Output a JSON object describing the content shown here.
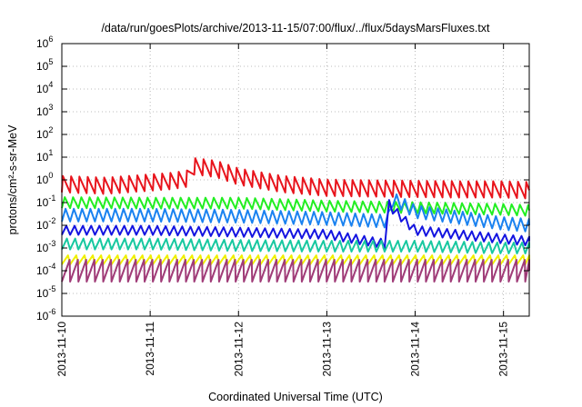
{
  "chart_data": {
    "type": "line",
    "title": "/data/run/goesPlots/archive/2013-11-15/07:00/flux/../flux/5daysMarsFluxes.txt",
    "xlabel": "Coordinated Universal Time (UTC)",
    "ylabel": "protons/cm²-s-sr-MeV",
    "y_scale": "log",
    "ylim": [
      1e-06,
      1000000.0
    ],
    "xlim": [
      "2013-11-10T00:00",
      "2013-11-15T07:00"
    ],
    "x_ticks": [
      "2013-11-10",
      "2013-11-11",
      "2013-11-12",
      "2013-11-13",
      "2013-11-14",
      "2013-11-15"
    ],
    "y_ticks": [
      {
        "base": "10",
        "exp": "-6"
      },
      {
        "base": "10",
        "exp": "-5"
      },
      {
        "base": "10",
        "exp": "-4"
      },
      {
        "base": "10",
        "exp": "-3"
      },
      {
        "base": "10",
        "exp": "-2"
      },
      {
        "base": "10",
        "exp": "-1"
      },
      {
        "base": "10",
        "exp": "0"
      },
      {
        "base": "10",
        "exp": "1"
      },
      {
        "base": "10",
        "exp": "2"
      },
      {
        "base": "10",
        "exp": "3"
      },
      {
        "base": "10",
        "exp": "4"
      },
      {
        "base": "10",
        "exp": "5"
      },
      {
        "base": "10",
        "exp": "6"
      }
    ],
    "grid": true,
    "series": [
      {
        "color": "#e8141c",
        "x": [
          "2013-11-10T00:00",
          "2013-11-10T12:00",
          "2013-11-11T06:00",
          "2013-11-11T11:00",
          "2013-11-11T12:00",
          "2013-11-11T18:00",
          "2013-11-12T00:00",
          "2013-11-12T12:00",
          "2013-11-13T00:00",
          "2013-11-13T12:00",
          "2013-11-14T00:00",
          "2013-11-14T12:00",
          "2013-11-15T00:00",
          "2013-11-15T07:00"
        ],
        "y": [
          0.65,
          0.55,
          0.9,
          1.2,
          4.0,
          3.0,
          1.4,
          0.65,
          0.45,
          0.42,
          0.4,
          0.38,
          0.38,
          0.35
        ]
      },
      {
        "color": "#22ee22",
        "x": [
          "2013-11-10T00:00",
          "2013-11-11T00:00",
          "2013-11-12T00:00",
          "2013-11-13T00:00",
          "2013-11-14T00:00",
          "2013-11-15T00:00",
          "2013-11-15T07:00"
        ],
        "y": [
          0.1,
          0.095,
          0.095,
          0.07,
          0.06,
          0.05,
          0.045
        ]
      },
      {
        "color": "#1a82f0",
        "x": [
          "2013-11-10T00:00",
          "2013-11-11T00:00",
          "2013-11-12T00:00",
          "2013-11-13T00:00",
          "2013-11-13T16:30",
          "2013-11-13T18:00",
          "2013-11-14T00:00",
          "2013-11-15T00:00",
          "2013-11-15T07:00"
        ],
        "y": [
          0.028,
          0.028,
          0.025,
          0.02,
          0.015,
          0.15,
          0.04,
          0.012,
          0.01
        ]
      },
      {
        "color": "#1414e0",
        "x": [
          "2013-11-10T00:00",
          "2013-11-11T00:00",
          "2013-11-12T00:00",
          "2013-11-13T00:00",
          "2013-11-13T16:00",
          "2013-11-13T16:30",
          "2013-11-13T18:00",
          "2013-11-14T00:00",
          "2013-11-15T00:00",
          "2013-11-15T07:00"
        ],
        "y": [
          0.006,
          0.006,
          0.005,
          0.004,
          0.0015,
          0.1,
          0.05,
          0.006,
          0.0025,
          0.002
        ]
      },
      {
        "color": "#18c8a0",
        "x": [
          "2013-11-10T00:00",
          "2013-11-11T00:00",
          "2013-11-12T00:00",
          "2013-11-13T00:00",
          "2013-11-14T00:00",
          "2013-11-15T00:00",
          "2013-11-15T07:00"
        ],
        "y": [
          0.0015,
          0.0015,
          0.0013,
          0.0012,
          0.0012,
          0.001,
          0.001
        ]
      },
      {
        "color": "#f0f000",
        "x": [
          "2013-11-10T00:00",
          "2013-11-15T07:00"
        ],
        "y": [
          0.0003,
          0.0003
        ]
      },
      {
        "color": "#a03c78",
        "x": [
          "2013-11-10T00:00",
          "2013-11-15T07:00"
        ],
        "y": [
          0.0001,
          0.0001
        ]
      }
    ]
  }
}
